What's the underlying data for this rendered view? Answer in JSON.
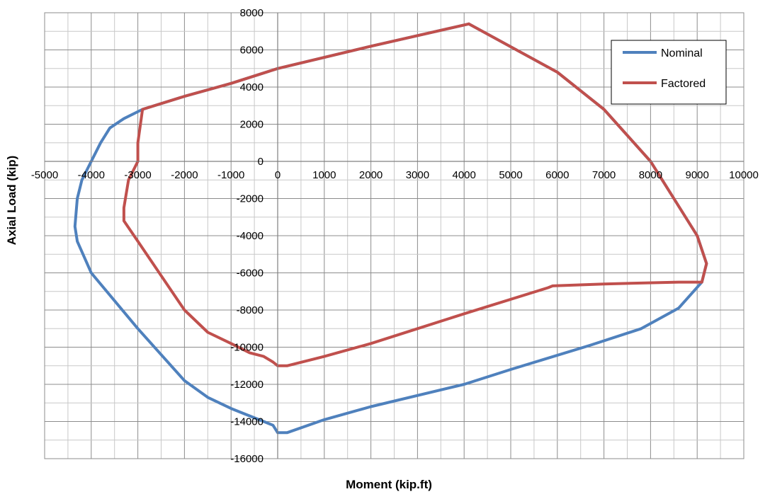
{
  "chart_data": {
    "type": "line",
    "title": "",
    "xlabel": "Moment (kip.ft)",
    "ylabel": "Axial Load (kip)",
    "xlim": [
      -5000,
      10000
    ],
    "ylim": [
      -16000,
      8000
    ],
    "x_ticks": [
      -5000,
      -4000,
      -3000,
      -2000,
      -1000,
      0,
      1000,
      2000,
      3000,
      4000,
      5000,
      6000,
      7000,
      8000,
      9000,
      10000
    ],
    "y_ticks": [
      8000,
      6000,
      4000,
      2000,
      0,
      -2000,
      -4000,
      -6000,
      -8000,
      -10000,
      -12000,
      -14000,
      -16000
    ],
    "x_tick_labels": [
      "-5000",
      "-4000",
      "-3000",
      "-2000",
      "-1000",
      "0",
      "1000",
      "2000",
      "3000",
      "4000",
      "5000",
      "6000",
      "7000",
      "8000",
      "9000",
      "10000"
    ],
    "y_tick_labels": [
      "8000",
      "6000",
      "4000",
      "2000",
      "0",
      "-2000",
      "-4000",
      "-6000",
      "-8000",
      "-10000",
      "-12000",
      "-14000",
      "-16000"
    ],
    "grid": true,
    "minor_grid": true,
    "legend_position": "top-right",
    "series": [
      {
        "name": "Nominal",
        "color": "#4F81BD",
        "points": [
          [
            4100,
            7400
          ],
          [
            6000,
            4800
          ],
          [
            7000,
            2800
          ],
          [
            8000,
            0
          ],
          [
            8500,
            -2000
          ],
          [
            9000,
            -4000
          ],
          [
            9200,
            -5500
          ],
          [
            9100,
            -6500
          ],
          [
            8600,
            -7900
          ],
          [
            7800,
            -9000
          ],
          [
            6700,
            -9900
          ],
          [
            5000,
            -11200
          ],
          [
            4000,
            -12000
          ],
          [
            2000,
            -13200
          ],
          [
            1000,
            -13900
          ],
          [
            200,
            -14600
          ],
          [
            0,
            -14600
          ],
          [
            -100,
            -14200
          ],
          [
            -300,
            -14000
          ],
          [
            -700,
            -13600
          ],
          [
            -1000,
            -13300
          ],
          [
            -1500,
            -12700
          ],
          [
            -2000,
            -11800
          ],
          [
            -3000,
            -9000
          ],
          [
            -4000,
            -6000
          ],
          [
            -4300,
            -4300
          ],
          [
            -4350,
            -3500
          ],
          [
            -4300,
            -2000
          ],
          [
            -4200,
            -1000
          ],
          [
            -4000,
            0
          ],
          [
            -3800,
            1000
          ],
          [
            -3600,
            1800
          ],
          [
            -3300,
            2300
          ],
          [
            -2900,
            2800
          ],
          [
            -2000,
            3500
          ],
          [
            -1000,
            4200
          ],
          [
            0,
            5000
          ],
          [
            2000,
            6200
          ],
          [
            4100,
            7400
          ]
        ]
      },
      {
        "name": "Factored",
        "color": "#C0504D",
        "points": [
          [
            4100,
            7400
          ],
          [
            6000,
            4800
          ],
          [
            7000,
            2800
          ],
          [
            8000,
            0
          ],
          [
            8500,
            -2000
          ],
          [
            9000,
            -4000
          ],
          [
            9200,
            -5500
          ],
          [
            9100,
            -6500
          ],
          [
            8600,
            -6500
          ],
          [
            7000,
            -6600
          ],
          [
            5900,
            -6700
          ],
          [
            5800,
            -6800
          ],
          [
            4000,
            -8200
          ],
          [
            3000,
            -9000
          ],
          [
            2000,
            -9800
          ],
          [
            1000,
            -10500
          ],
          [
            200,
            -11000
          ],
          [
            0,
            -11000
          ],
          [
            -100,
            -10800
          ],
          [
            -300,
            -10500
          ],
          [
            -600,
            -10300
          ],
          [
            -1000,
            -9800
          ],
          [
            -1500,
            -9200
          ],
          [
            -2000,
            -8000
          ],
          [
            -3000,
            -4300
          ],
          [
            -3300,
            -3200
          ],
          [
            -3300,
            -2500
          ],
          [
            -3200,
            -1000
          ],
          [
            -3000,
            0
          ],
          [
            -3000,
            1000
          ],
          [
            -2900,
            2800
          ],
          [
            -2000,
            3500
          ],
          [
            -1000,
            4200
          ],
          [
            0,
            5000
          ],
          [
            2000,
            6200
          ],
          [
            4100,
            7400
          ]
        ]
      }
    ]
  }
}
